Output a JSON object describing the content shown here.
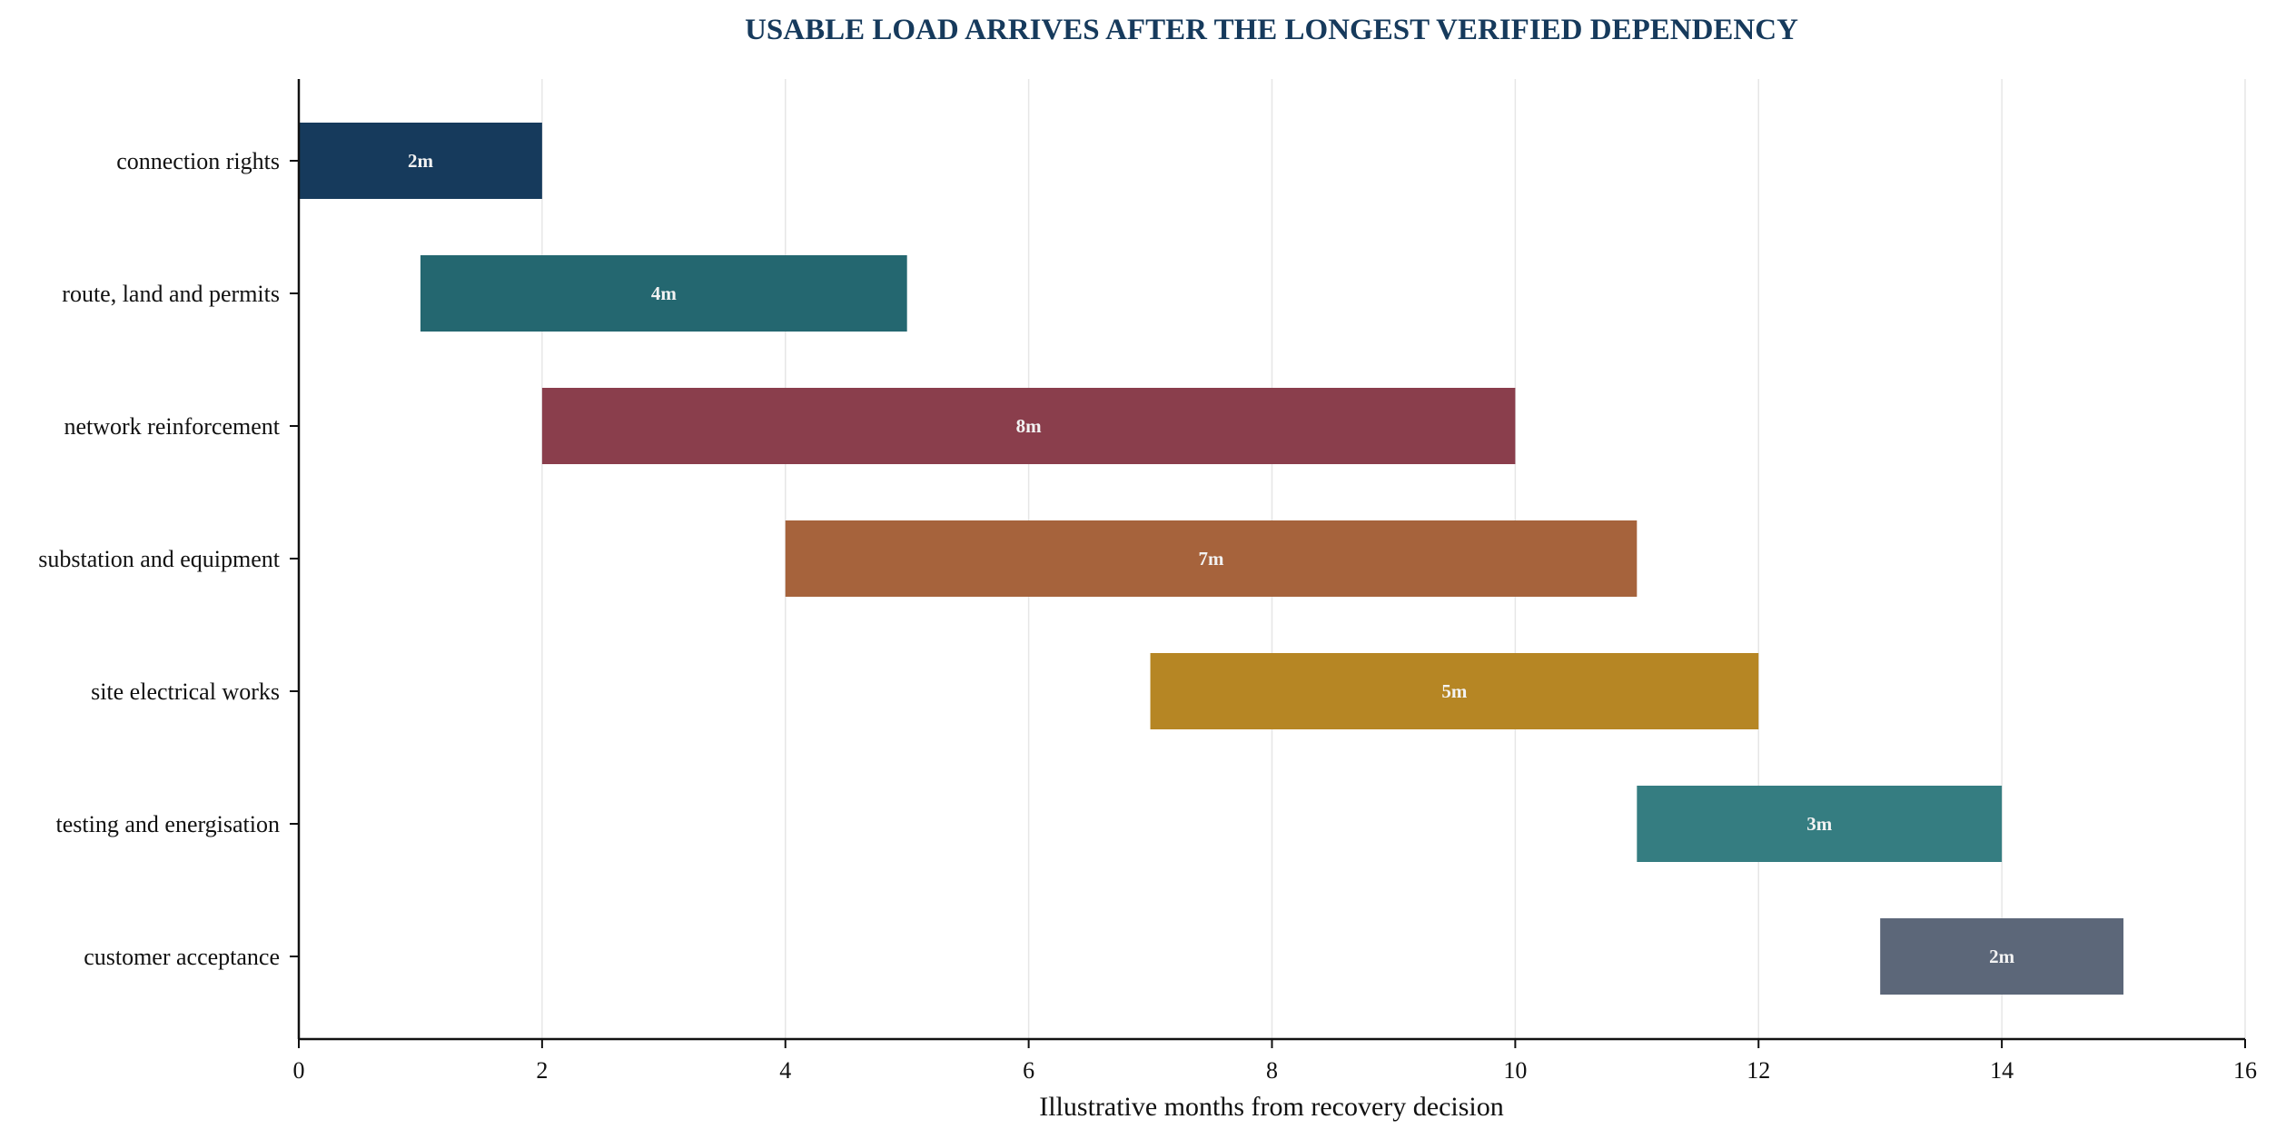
{
  "chart_data": {
    "type": "gantt",
    "title": "USABLE LOAD ARRIVES AFTER THE LONGEST VERIFIED DEPENDENCY",
    "xlabel": "Illustrative months from recovery decision",
    "ylabel": "",
    "xlim": [
      0,
      16
    ],
    "xticks": [
      0,
      2,
      4,
      6,
      8,
      10,
      12,
      14,
      16
    ],
    "grid": "vertical",
    "tasks": [
      {
        "name": "connection rights",
        "start": 0,
        "end": 2,
        "label": "2m",
        "color": "#163a5c"
      },
      {
        "name": "route, land and permits",
        "start": 1,
        "end": 5,
        "label": "4m",
        "color": "#246770"
      },
      {
        "name": "network reinforcement",
        "start": 2,
        "end": 10,
        "label": "8m",
        "color": "#8a3e4c"
      },
      {
        "name": "substation and equipment",
        "start": 4,
        "end": 11,
        "label": "7m",
        "color": "#a6633c"
      },
      {
        "name": "site electrical works",
        "start": 7,
        "end": 12,
        "label": "5m",
        "color": "#b68624"
      },
      {
        "name": "testing and energisation",
        "start": 11,
        "end": 14,
        "label": "3m",
        "color": "#357d81"
      },
      {
        "name": "customer acceptance",
        "start": 13,
        "end": 15,
        "label": "2m",
        "color": "#5c6779"
      }
    ]
  }
}
